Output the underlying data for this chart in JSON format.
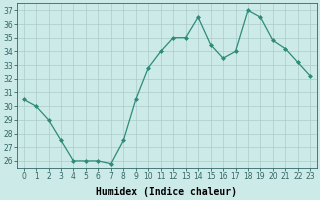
{
  "x": [
    0,
    1,
    2,
    3,
    4,
    5,
    6,
    7,
    8,
    9,
    10,
    11,
    12,
    13,
    14,
    15,
    16,
    17,
    18,
    19,
    20,
    21,
    22,
    23
  ],
  "y": [
    30.5,
    30.0,
    29.0,
    27.5,
    26.0,
    26.0,
    26.0,
    25.8,
    27.5,
    30.5,
    32.8,
    34.0,
    35.0,
    35.0,
    36.5,
    34.5,
    33.5,
    34.0,
    37.0,
    36.5,
    34.8,
    34.2,
    33.2,
    32.2
  ],
  "line_color": "#2e8b7a",
  "marker": "D",
  "marker_size": 2.0,
  "bg_color": "#cceae8",
  "grid_color": "#aacccc",
  "xlabel": "Humidex (Indice chaleur)",
  "ylim_min": 25.5,
  "ylim_max": 37.5,
  "xlim_min": -0.5,
  "xlim_max": 23.5,
  "yticks": [
    26,
    27,
    28,
    29,
    30,
    31,
    32,
    33,
    34,
    35,
    36,
    37
  ],
  "xticks": [
    0,
    1,
    2,
    3,
    4,
    5,
    6,
    7,
    8,
    9,
    10,
    11,
    12,
    13,
    14,
    15,
    16,
    17,
    18,
    19,
    20,
    21,
    22,
    23
  ],
  "tick_fontsize": 5.5,
  "xlabel_fontsize": 7.0
}
